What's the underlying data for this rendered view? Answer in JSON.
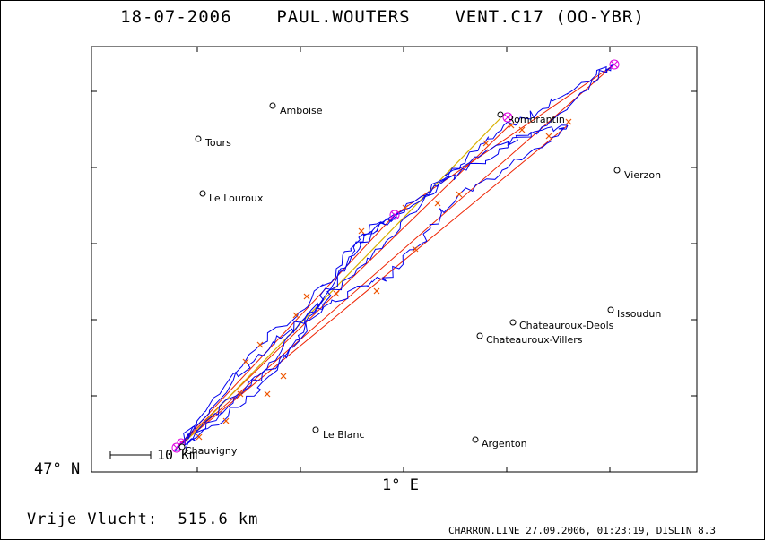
{
  "header": {
    "title": "18-07-2006    PAUL.WOUTERS    VENT.C17 (OO-YBR)"
  },
  "axes": {
    "latitude_label": "47° N",
    "longitude_label": "1° E"
  },
  "scale_bar": {
    "label": "10 Km"
  },
  "flight": {
    "distance_text": "Vrije Vlucht:  515.6 km"
  },
  "footer": {
    "text": "CHARRON.LINE 27.09.2006, 01:23:19, DISLIN 8.3"
  },
  "places": [
    {
      "name": "Amboise"
    },
    {
      "name": "Tours"
    },
    {
      "name": "Le Louroux"
    },
    {
      "name": "Romorantin"
    },
    {
      "name": "Vierzon"
    },
    {
      "name": "Issoudun"
    },
    {
      "name": "Chateauroux-Deols"
    },
    {
      "name": "Chateauroux-Villers"
    },
    {
      "name": "Le Blanc"
    },
    {
      "name": "Argenton"
    },
    {
      "name": "Chauvigny"
    }
  ],
  "colors": {
    "track": "#0000ee",
    "task_lines": "#ee2200",
    "leg_line": "#d8b000",
    "turnpoints": "#e000e0",
    "markers": "#ee5500"
  }
}
